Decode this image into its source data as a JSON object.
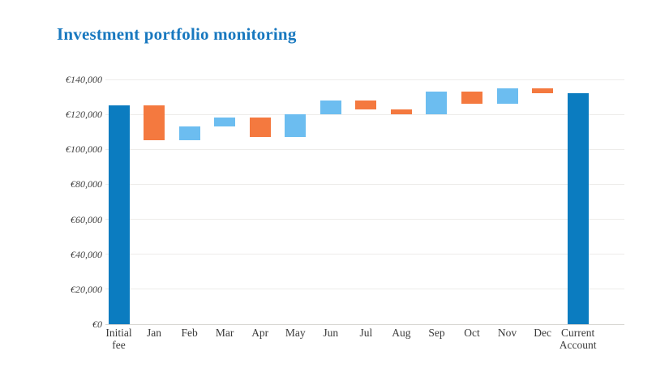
{
  "title": "Investment portfolio monitoring",
  "title_color": "#1878bf",
  "chart_data": {
    "type": "bar",
    "subtype": "waterfall",
    "title": "Investment portfolio monitoring",
    "currency": "EUR",
    "grid": true,
    "legend": false,
    "ylim": [
      0,
      140000
    ],
    "y_ticks": [
      {
        "value": 0,
        "label": "€0"
      },
      {
        "value": 20000,
        "label": "€20,000"
      },
      {
        "value": 40000,
        "label": "€40,000"
      },
      {
        "value": 60000,
        "label": "€60,000"
      },
      {
        "value": 80000,
        "label": "€80,000"
      },
      {
        "value": 100000,
        "label": "€100,000"
      },
      {
        "value": 120000,
        "label": "€120,000"
      },
      {
        "value": 140000,
        "label": "€140,000"
      }
    ],
    "colors": {
      "total": "#0b7cc0",
      "increase": "#6cbdf0",
      "decrease": "#f4793f"
    },
    "bars": [
      {
        "label": "Initial fee",
        "label_lines": [
          "Initial",
          "fee"
        ],
        "kind": "total",
        "start": 0,
        "end": 125000,
        "value": 125000
      },
      {
        "label": "Jan",
        "label_lines": [
          "Jan"
        ],
        "kind": "decrease",
        "start": 125000,
        "end": 105000,
        "value": -20000
      },
      {
        "label": "Feb",
        "label_lines": [
          "Feb"
        ],
        "kind": "increase",
        "start": 105000,
        "end": 113000,
        "value": 8000
      },
      {
        "label": "Mar",
        "label_lines": [
          "Mar"
        ],
        "kind": "increase",
        "start": 113000,
        "end": 118000,
        "value": 5000
      },
      {
        "label": "Apr",
        "label_lines": [
          "Apr"
        ],
        "kind": "decrease",
        "start": 118000,
        "end": 107000,
        "value": -11000
      },
      {
        "label": "May",
        "label_lines": [
          "May"
        ],
        "kind": "increase",
        "start": 107000,
        "end": 120000,
        "value": 13000
      },
      {
        "label": "Jun",
        "label_lines": [
          "Jun"
        ],
        "kind": "increase",
        "start": 120000,
        "end": 128000,
        "value": 8000
      },
      {
        "label": "Jul",
        "label_lines": [
          "Jul"
        ],
        "kind": "decrease",
        "start": 128000,
        "end": 123000,
        "value": -5000
      },
      {
        "label": "Aug",
        "label_lines": [
          "Aug"
        ],
        "kind": "decrease",
        "start": 123000,
        "end": 120000,
        "value": -3000
      },
      {
        "label": "Sep",
        "label_lines": [
          "Sep"
        ],
        "kind": "increase",
        "start": 120000,
        "end": 133000,
        "value": 13000
      },
      {
        "label": "Oct",
        "label_lines": [
          "Oct"
        ],
        "kind": "decrease",
        "start": 133000,
        "end": 126000,
        "value": -7000
      },
      {
        "label": "Nov",
        "label_lines": [
          "Nov"
        ],
        "kind": "increase",
        "start": 126000,
        "end": 135000,
        "value": 9000
      },
      {
        "label": "Dec",
        "label_lines": [
          "Dec"
        ],
        "kind": "decrease",
        "start": 135000,
        "end": 132000,
        "value": -3000
      },
      {
        "label": "Current Account",
        "label_lines": [
          "Current",
          "Account"
        ],
        "kind": "total",
        "start": 0,
        "end": 132000,
        "value": 132000
      }
    ]
  }
}
